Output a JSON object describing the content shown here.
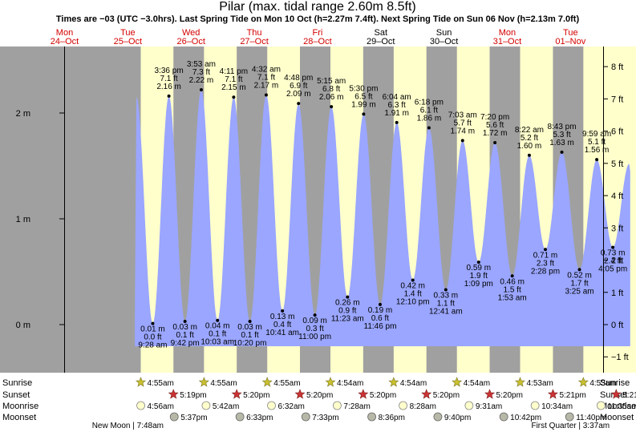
{
  "chart_data": {
    "type": "area",
    "title": "Pilar (max. tidal range 2.60m 8.5ft)",
    "subtitle": "Times are −03 (UTC −3.0hrs). Last Spring Tide on Mon 10 Oct (h=2.27m 7.4ft). Next Spring Tide on Sun 06 Nov (h=2.13m 7.0ft)",
    "ylabel_left": "m",
    "ylabel_right": "ft",
    "ylim_m": [
      -0.4,
      2.6
    ],
    "y_ticks_m": [
      {
        "value": 0,
        "label": "0 m"
      },
      {
        "value": 1,
        "label": "1 m"
      },
      {
        "value": 2,
        "label": "2 m"
      }
    ],
    "y_ticks_ft": [
      {
        "value": -1,
        "label": "−1 ft"
      },
      {
        "value": 0,
        "label": "0 ft"
      },
      {
        "value": 1,
        "label": "1 ft"
      },
      {
        "value": 2,
        "label": "2 ft"
      },
      {
        "value": 3,
        "label": "3 ft"
      },
      {
        "value": 4,
        "label": "4 ft"
      },
      {
        "value": 5,
        "label": "5 ft"
      },
      {
        "value": 6,
        "label": "6 ft"
      },
      {
        "value": 7,
        "label": "7 ft"
      },
      {
        "value": 8,
        "label": "8 ft"
      }
    ],
    "days": [
      {
        "dow": "Mon",
        "date": "24–Oct",
        "weekend": false
      },
      {
        "dow": "Tue",
        "date": "25–Oct",
        "weekend": false
      },
      {
        "dow": "Wed",
        "date": "26–Oct",
        "weekend": false
      },
      {
        "dow": "Thu",
        "date": "27–Oct",
        "weekend": false
      },
      {
        "dow": "Fri",
        "date": "28–Oct",
        "weekend": false
      },
      {
        "dow": "Sat",
        "date": "29–Oct",
        "weekend": true
      },
      {
        "dow": "Sun",
        "date": "30–Oct",
        "weekend": true
      },
      {
        "dow": "Mon",
        "date": "31–Oct",
        "weekend": false
      },
      {
        "dow": "Tue",
        "date": "01–Nov",
        "weekend": false
      }
    ],
    "tides": [
      {
        "type": "low",
        "day": 1,
        "time": "9:28 am",
        "m": "0.01 m",
        "ft": "0.0 ft",
        "v": 0.01
      },
      {
        "type": "high",
        "day": 1,
        "time": "3:36 pm",
        "m": "2.16 m",
        "ft": "7.1 ft",
        "v": 2.16
      },
      {
        "type": "low",
        "day": 1,
        "time": "9:42 pm",
        "m": "0.03 m",
        "ft": "0.1 ft",
        "v": 0.03
      },
      {
        "type": "high",
        "day": 2,
        "time": "3:53 am",
        "m": "2.22 m",
        "ft": "7.3 ft",
        "v": 2.22
      },
      {
        "type": "low",
        "day": 2,
        "time": "10:03 am",
        "m": "0.04 m",
        "ft": "0.1 ft",
        "v": 0.04
      },
      {
        "type": "high",
        "day": 2,
        "time": "4:11 pm",
        "m": "2.15 m",
        "ft": "7.1 ft",
        "v": 2.15
      },
      {
        "type": "low",
        "day": 2,
        "time": "10:20 pm",
        "m": "0.03 m",
        "ft": "0.1 ft",
        "v": 0.03
      },
      {
        "type": "high",
        "day": 3,
        "time": "4:32 am",
        "m": "2.17 m",
        "ft": "7.1 ft",
        "v": 2.17
      },
      {
        "type": "low",
        "day": 3,
        "time": "10:41 am",
        "m": "0.13 m",
        "ft": "0.4 ft",
        "v": 0.13
      },
      {
        "type": "high",
        "day": 3,
        "time": "4:48 pm",
        "m": "2.09 m",
        "ft": "6.9 ft",
        "v": 2.09
      },
      {
        "type": "low",
        "day": 3,
        "time": "11:00 pm",
        "m": "0.09 m",
        "ft": "0.3 ft",
        "v": 0.09
      },
      {
        "type": "high",
        "day": 4,
        "time": "5:15 am",
        "m": "2.06 m",
        "ft": "6.8 ft",
        "v": 2.06
      },
      {
        "type": "low",
        "day": 4,
        "time": "11:23 am",
        "m": "0.26 m",
        "ft": "0.9 ft",
        "v": 0.26
      },
      {
        "type": "high",
        "day": 4,
        "time": "5:30 pm",
        "m": "1.99 m",
        "ft": "6.5 ft",
        "v": 1.99
      },
      {
        "type": "low",
        "day": 4,
        "time": "11:46 pm",
        "m": "0.19 m",
        "ft": "0.6 ft",
        "v": 0.19
      },
      {
        "type": "high",
        "day": 5,
        "time": "6:04 am",
        "m": "1.91 m",
        "ft": "6.3 ft",
        "v": 1.91
      },
      {
        "type": "low",
        "day": 5,
        "time": "12:10 pm",
        "m": "0.42 m",
        "ft": "1.4 ft",
        "v": 0.42
      },
      {
        "type": "high",
        "day": 5,
        "time": "6:18 pm",
        "m": "1.86 m",
        "ft": "6.1 ft",
        "v": 1.86
      },
      {
        "type": "low",
        "day": 6,
        "time": "12:41 am",
        "m": "0.33 m",
        "ft": "1.1 ft",
        "v": 0.33
      },
      {
        "type": "high",
        "day": 6,
        "time": "7:03 am",
        "m": "1.74 m",
        "ft": "5.7 ft",
        "v": 1.74
      },
      {
        "type": "low",
        "day": 6,
        "time": "1:09 pm",
        "m": "0.59 m",
        "ft": "1.9 ft",
        "v": 0.59
      },
      {
        "type": "high",
        "day": 6,
        "time": "7:20 pm",
        "m": "1.72 m",
        "ft": "5.6 ft",
        "v": 1.72
      },
      {
        "type": "low",
        "day": 7,
        "time": "1:53 am",
        "m": "0.46 m",
        "ft": "1.5 ft",
        "v": 0.46
      },
      {
        "type": "high",
        "day": 7,
        "time": "8:22 am",
        "m": "1.60 m",
        "ft": "5.2 ft",
        "v": 1.6
      },
      {
        "type": "low",
        "day": 7,
        "time": "2:28 pm",
        "m": "0.71 m",
        "ft": "2.3 ft",
        "v": 0.71
      },
      {
        "type": "high",
        "day": 7,
        "time": "8:43 pm",
        "m": "1.63 m",
        "ft": "5.3 ft",
        "v": 1.63
      },
      {
        "type": "low",
        "day": 8,
        "time": "3:25 am",
        "m": "0.52 m",
        "ft": "1.7 ft",
        "v": 0.52
      },
      {
        "type": "high",
        "day": 8,
        "time": "9:59 am",
        "m": "1.56 m",
        "ft": "5.1 ft",
        "v": 1.56
      },
      {
        "type": "low",
        "day": 8,
        "time": "4:05 pm",
        "m": "0.73 m",
        "ft": "2.4 ft",
        "v": 0.73
      }
    ],
    "row_labels": [
      "Sunrise",
      "Sunset",
      "Moonrise",
      "Moonset"
    ],
    "sunrise": [
      "4:55am",
      "4:55am",
      "4:55am",
      "4:54am",
      "4:54am",
      "4:54am",
      "4:53am",
      "4:53am"
    ],
    "sunset": [
      "5:19pm",
      "5:20pm",
      "5:20pm",
      "5:20pm",
      "5:20pm",
      "5:20pm",
      "5:21pm",
      "5:21pm"
    ],
    "moonrise": [
      "4:56am",
      "5:42am",
      "6:32am",
      "7:28am",
      "8:28am",
      "9:31am",
      "10:34am",
      "11:35am"
    ],
    "moonset": [
      "5:37pm",
      "6:33pm",
      "7:33pm",
      "8:36pm",
      "9:40pm",
      "10:42pm",
      "11:40pm"
    ],
    "moon_phases": [
      {
        "label": "New Moon | 7:48am",
        "day": 1
      },
      {
        "label": "First Quarter | 3:37am",
        "day": 8
      }
    ],
    "colors": {
      "night": "#a0a0a0",
      "day": "#ffffcc",
      "water": "#9aa6ff",
      "red_text": "#d40000",
      "sun_star": "#c9c030",
      "sunset_star": "#cc3333",
      "moonrise_disc": "#ffffcc",
      "moonset_disc": "#b8b8a8"
    }
  }
}
